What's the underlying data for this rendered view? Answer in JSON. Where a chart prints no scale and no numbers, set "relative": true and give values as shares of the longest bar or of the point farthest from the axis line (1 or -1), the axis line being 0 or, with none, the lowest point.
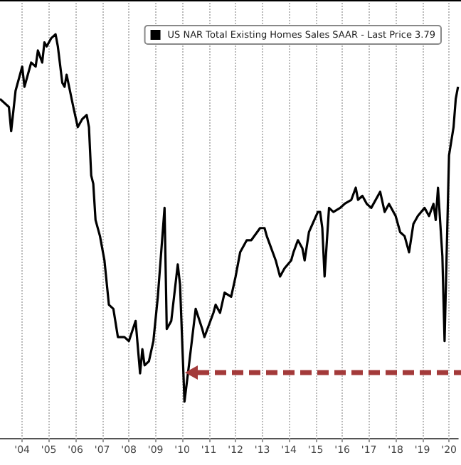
{
  "chart_data": {
    "type": "line",
    "relative": true,
    "legend": "top right",
    "grid": "x",
    "xlim": [
      "2003-09",
      "2020-11"
    ],
    "xticks": [
      {
        "value": "2004-07",
        "label": "'04"
      },
      {
        "value": "2005-07",
        "label": "'05"
      },
      {
        "value": "2006-07",
        "label": "'06"
      },
      {
        "value": "2007-07",
        "label": "'07"
      },
      {
        "value": "2008-07",
        "label": "'08"
      },
      {
        "value": "2009-07",
        "label": "'09"
      },
      {
        "value": "2010-07",
        "label": "'10"
      },
      {
        "value": "2011-07",
        "label": "'11"
      },
      {
        "value": "2012-07",
        "label": "'12"
      },
      {
        "value": "2013-07",
        "label": "'13"
      },
      {
        "value": "2014-07",
        "label": "'14"
      },
      {
        "value": "2015-07",
        "label": "'15"
      },
      {
        "value": "2016-07",
        "label": "'16"
      },
      {
        "value": "2017-07",
        "label": "'17"
      },
      {
        "value": "2018-07",
        "label": "'18"
      },
      {
        "value": "2019-07",
        "label": "'19"
      },
      {
        "value": "2020-07",
        "label": "'20"
      }
    ],
    "x": [
      "2003-09",
      "2004-01",
      "2004-02",
      "2004-04",
      "2004-07",
      "2004-08",
      "2004-11",
      "2005-01",
      "2005-02",
      "2005-04",
      "2005-05",
      "2005-06",
      "2005-08",
      "2005-10",
      "2005-11",
      "2006-01",
      "2006-02",
      "2006-03",
      "2006-06",
      "2006-08",
      "2006-10",
      "2006-12",
      "2007-01",
      "2007-02",
      "2007-03",
      "2007-04",
      "2007-06",
      "2007-08",
      "2007-10",
      "2007-12",
      "2008-02",
      "2008-05",
      "2008-07",
      "2008-10",
      "2008-12",
      "2009-01",
      "2009-02",
      "2009-04",
      "2009-06",
      "2009-08",
      "2009-11",
      "2009-12",
      "2010-02",
      "2010-05",
      "2010-06",
      "2010-08",
      "2010-10",
      "2011-01",
      "2011-04",
      "2011-05",
      "2011-09",
      "2011-10",
      "2011-12",
      "2012-02",
      "2012-05",
      "2012-07",
      "2012-09",
      "2012-12",
      "2013-02",
      "2013-06",
      "2013-08",
      "2013-09",
      "2014-01",
      "2014-03",
      "2014-05",
      "2014-08",
      "2014-09",
      "2014-11",
      "2015-01",
      "2015-02",
      "2015-04",
      "2015-08",
      "2015-09",
      "2015-10",
      "2015-11",
      "2016-01",
      "2016-03",
      "2016-06",
      "2016-08",
      "2016-11",
      "2017-01",
      "2017-02",
      "2017-04",
      "2017-06",
      "2017-08",
      "2017-12",
      "2018-02",
      "2018-04",
      "2018-07",
      "2018-09",
      "2018-11",
      "2019-01",
      "2019-03",
      "2019-05",
      "2019-08",
      "2019-10",
      "2019-12",
      "2020-01",
      "2020-02",
      "2020-04",
      "2020-05",
      "2020-07",
      "2020-09",
      "2020-10",
      "2020-11"
    ],
    "series": [
      {
        "name": "US NAR Total Existing Homes Sales SAAR - Last Price 3.79",
        "color": "#000000",
        "values": [
          0.84,
          0.82,
          0.76,
          0.86,
          0.92,
          0.87,
          0.93,
          0.92,
          0.96,
          0.93,
          0.98,
          0.97,
          0.99,
          1,
          0.97,
          0.88,
          0.87,
          0.9,
          0.82,
          0.77,
          0.79,
          0.8,
          0.77,
          0.65,
          0.63,
          0.54,
          0.5,
          0.44,
          0.33,
          0.32,
          0.25,
          0.25,
          0.24,
          0.29,
          0.16,
          0.22,
          0.18,
          0.19,
          0.24,
          0.35,
          0.57,
          0.27,
          0.29,
          0.43,
          0.38,
          0.09,
          0.18,
          0.32,
          0.27,
          0.25,
          0.31,
          0.33,
          0.31,
          0.36,
          0.35,
          0.4,
          0.46,
          0.49,
          0.49,
          0.52,
          0.52,
          0.5,
          0.44,
          0.4,
          0.42,
          0.44,
          0.46,
          0.49,
          0.47,
          0.44,
          0.51,
          0.56,
          0.56,
          0.52,
          0.4,
          0.57,
          0.56,
          0.57,
          0.58,
          0.59,
          0.62,
          0.59,
          0.6,
          0.58,
          0.57,
          0.61,
          0.56,
          0.58,
          0.55,
          0.51,
          0.5,
          0.46,
          0.53,
          0.55,
          0.57,
          0.55,
          0.58,
          0.54,
          0.62,
          0.45,
          0.24,
          0.7,
          0.77,
          0.84,
          0.87
        ]
      }
    ]
  }
}
